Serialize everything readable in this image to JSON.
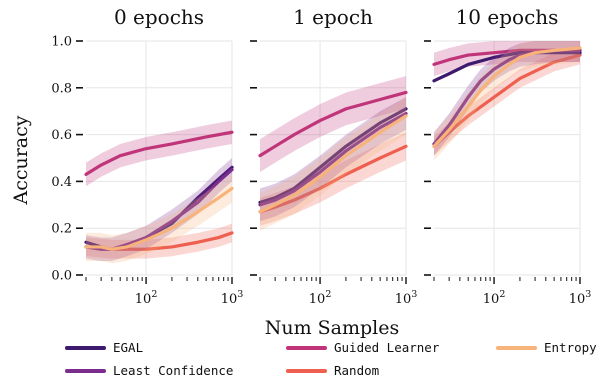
{
  "chart_data": {
    "type": "line",
    "ylabel": "Accuracy",
    "xlabel": "Num Samples",
    "x_scale": "log",
    "xlim": [
      20,
      1000
    ],
    "ylim": [
      0.0,
      1.0
    ],
    "yticks": [
      "0.0",
      "0.2",
      "0.4",
      "0.6",
      "0.8",
      "1.0"
    ],
    "xtick_labels": [
      "10",
      "10"
    ],
    "xtick_superscripts": [
      "2",
      "3"
    ],
    "legend_placement": "bottom",
    "grid": true,
    "series_colors": {
      "EGAL": "#3d1a6e",
      "Least Confidence": "#7b2d8e",
      "Guided Learner": "#c0357a",
      "Random": "#ee5f4f",
      "Entropy": "#f7b37a"
    },
    "panels": [
      {
        "title": "0 epochs",
        "series": [
          {
            "name": "EGAL",
            "x": [
              20,
              30,
              40,
              60,
              100,
              200,
              400,
              700,
              1000
            ],
            "y": [
              0.14,
              0.12,
              0.11,
              0.12,
              0.16,
              0.22,
              0.33,
              0.41,
              0.46
            ]
          },
          {
            "name": "Least Confidence",
            "x": [
              20,
              30,
              40,
              60,
              100,
              200,
              400,
              700,
              1000
            ],
            "y": [
              0.12,
              0.11,
              0.11,
              0.13,
              0.16,
              0.23,
              0.31,
              0.4,
              0.45
            ]
          },
          {
            "name": "Guided Learner",
            "x": [
              20,
              30,
              50,
              100,
              200,
              500,
              1000
            ],
            "y": [
              0.43,
              0.47,
              0.51,
              0.54,
              0.56,
              0.59,
              0.61
            ]
          },
          {
            "name": "Random",
            "x": [
              20,
              40,
              100,
              200,
              400,
              700,
              1000
            ],
            "y": [
              0.12,
              0.11,
              0.11,
              0.12,
              0.14,
              0.16,
              0.18
            ]
          },
          {
            "name": "Entropy",
            "x": [
              20,
              30,
              40,
              60,
              100,
              200,
              400,
              700,
              1000
            ],
            "y": [
              0.12,
              0.12,
              0.11,
              0.12,
              0.15,
              0.2,
              0.27,
              0.33,
              0.37
            ]
          }
        ]
      },
      {
        "title": "1 epoch",
        "series": [
          {
            "name": "EGAL",
            "x": [
              20,
              30,
              50,
              100,
              200,
              500,
              1000
            ],
            "y": [
              0.31,
              0.33,
              0.37,
              0.46,
              0.55,
              0.65,
              0.71
            ]
          },
          {
            "name": "Least Confidence",
            "x": [
              20,
              30,
              50,
              100,
              200,
              500,
              1000
            ],
            "y": [
              0.3,
              0.32,
              0.36,
              0.44,
              0.53,
              0.63,
              0.69
            ]
          },
          {
            "name": "Guided Learner",
            "x": [
              20,
              30,
              50,
              100,
              200,
              500,
              1000
            ],
            "y": [
              0.51,
              0.55,
              0.6,
              0.66,
              0.71,
              0.75,
              0.78
            ]
          },
          {
            "name": "Random",
            "x": [
              20,
              30,
              50,
              100,
              200,
              500,
              1000
            ],
            "y": [
              0.27,
              0.29,
              0.32,
              0.37,
              0.43,
              0.5,
              0.55
            ]
          },
          {
            "name": "Entropy",
            "x": [
              20,
              30,
              50,
              100,
              200,
              500,
              1000
            ],
            "y": [
              0.27,
              0.3,
              0.34,
              0.42,
              0.51,
              0.61,
              0.68
            ]
          }
        ]
      },
      {
        "title": "10 epochs",
        "series": [
          {
            "name": "EGAL",
            "x": [
              20,
              30,
              50,
              100,
              200,
              400,
              1000
            ],
            "y": [
              0.83,
              0.86,
              0.9,
              0.93,
              0.95,
              0.95,
              0.95
            ]
          },
          {
            "name": "Least Confidence",
            "x": [
              20,
              30,
              50,
              70,
              100,
              150,
              200,
              300,
              500,
              1000
            ],
            "y": [
              0.56,
              0.64,
              0.76,
              0.83,
              0.88,
              0.92,
              0.94,
              0.95,
              0.96,
              0.96
            ]
          },
          {
            "name": "Guided Learner",
            "x": [
              20,
              30,
              50,
              100,
              200,
              500,
              1000
            ],
            "y": [
              0.9,
              0.92,
              0.94,
              0.95,
              0.96,
              0.96,
              0.96
            ]
          },
          {
            "name": "Random",
            "x": [
              20,
              30,
              50,
              100,
              200,
              500,
              1000
            ],
            "y": [
              0.55,
              0.61,
              0.68,
              0.76,
              0.84,
              0.91,
              0.94
            ]
          },
          {
            "name": "Entropy",
            "x": [
              20,
              30,
              50,
              70,
              100,
              150,
              200,
              300,
              500,
              1000
            ],
            "y": [
              0.55,
              0.62,
              0.72,
              0.79,
              0.85,
              0.9,
              0.93,
              0.95,
              0.96,
              0.97
            ]
          }
        ]
      }
    ]
  },
  "legend_order": [
    "EGAL",
    "Guided Learner",
    "Entropy",
    "Least Confidence",
    "Random"
  ]
}
